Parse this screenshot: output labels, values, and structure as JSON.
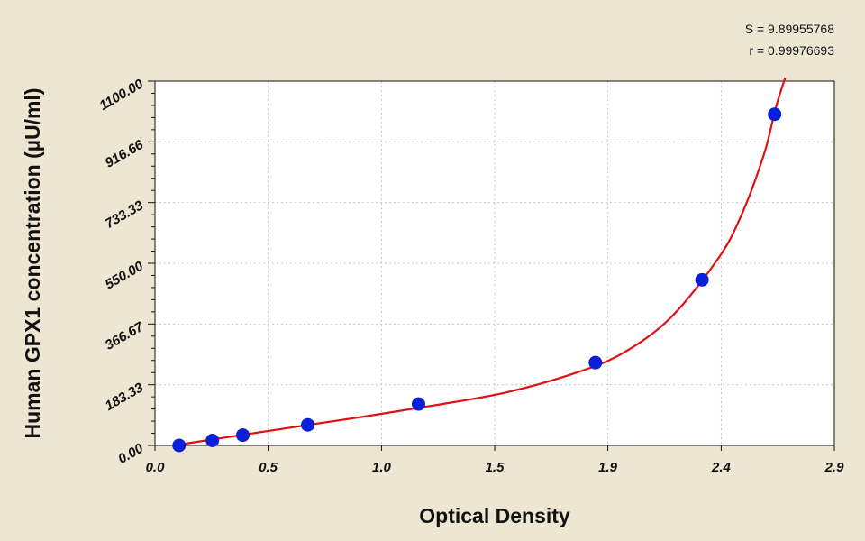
{
  "chart_data": {
    "type": "scatter",
    "xlabel": "Optical Density",
    "ylabel": "Human GPX1 concentration (µU/ml)",
    "xlim": [
      0,
      2.9
    ],
    "ylim": [
      0,
      1100
    ],
    "x_ticks": [
      "0.0",
      "0.5",
      "1.0",
      "1.5",
      "1.9",
      "2.4",
      "2.9"
    ],
    "x_tick_values": [
      0,
      0.483,
      0.967,
      1.45,
      1.933,
      2.417,
      2.9
    ],
    "y_ticks": [
      "0.00",
      "183.33",
      "366.67",
      "550.00",
      "733.33",
      "916.66",
      "1100.00"
    ],
    "y_tick_values": [
      0,
      183.33,
      366.67,
      550,
      733.33,
      916.66,
      1100
    ],
    "grid": true,
    "stats": [
      "S = 9.89955768",
      "r = 0.99976693"
    ],
    "series": [
      {
        "points": [
          {
            "x": 0.103,
            "y": 0
          },
          {
            "x": 0.245,
            "y": 15
          },
          {
            "x": 0.375,
            "y": 31
          },
          {
            "x": 0.652,
            "y": 62
          },
          {
            "x": 1.125,
            "y": 125
          },
          {
            "x": 1.88,
            "y": 250
          },
          {
            "x": 2.335,
            "y": 500
          },
          {
            "x": 2.645,
            "y": 1000
          }
        ],
        "fit_curve": [
          {
            "x": 0.08,
            "y": 0
          },
          {
            "x": 0.3,
            "y": 24
          },
          {
            "x": 0.6,
            "y": 56
          },
          {
            "x": 0.9,
            "y": 88
          },
          {
            "x": 1.2,
            "y": 122
          },
          {
            "x": 1.5,
            "y": 160
          },
          {
            "x": 1.8,
            "y": 220
          },
          {
            "x": 2.0,
            "y": 280
          },
          {
            "x": 2.2,
            "y": 385
          },
          {
            "x": 2.4,
            "y": 560
          },
          {
            "x": 2.5,
            "y": 690
          },
          {
            "x": 2.6,
            "y": 880
          },
          {
            "x": 2.65,
            "y": 1020
          },
          {
            "x": 2.69,
            "y": 1110
          }
        ],
        "marker_color": "#0b1fd8",
        "curve_color": "#e01010"
      }
    ]
  }
}
